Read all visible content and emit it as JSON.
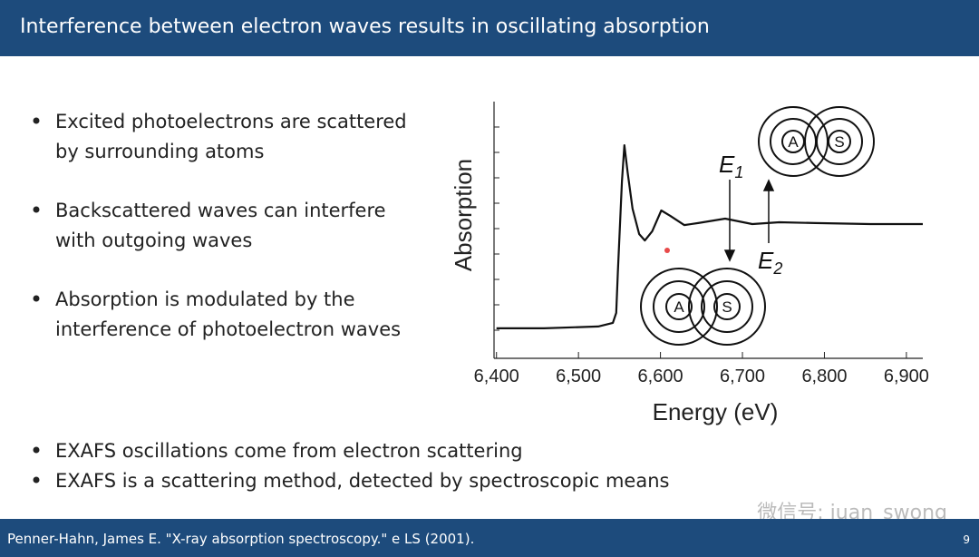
{
  "slide": {
    "title": "Interference between electron waves results in oscillating absorption",
    "bullets_top": [
      "Excited photoelectrons are scattered",
      "by surrounding atoms",
      "Backscattered waves can interfere",
      "with outgoing waves",
      "Absorption is modulated by the",
      "interference of photoelectron waves"
    ],
    "bullets_bottom": [
      "EXAFS oscillations come from electron scattering",
      "EXAFS is a scattering method, detected by spectroscopic means"
    ],
    "footer": "Penner-Hahn, James E. \"X-ray absorption spectroscopy.\" e LS (2001).",
    "page_number": "9",
    "watermark": "微信号: juan_swong"
  },
  "chart_data": {
    "type": "line",
    "xlabel": "Energy (eV)",
    "ylabel": "Absorption",
    "x": [
      6400,
      6458,
      6524,
      6542,
      6546,
      6548,
      6553,
      6556,
      6560,
      6566,
      6574,
      6581,
      6590,
      6601,
      6612,
      6629,
      6646,
      6679,
      6712,
      6745,
      6789,
      6856,
      6920
    ],
    "y": [
      0.117,
      0.117,
      0.124,
      0.138,
      0.177,
      0.336,
      0.689,
      0.83,
      0.724,
      0.583,
      0.484,
      0.459,
      0.495,
      0.576,
      0.555,
      0.519,
      0.527,
      0.544,
      0.523,
      0.53,
      0.527,
      0.523,
      0.523
    ],
    "color": "#111111",
    "xlim": [
      6397,
      6920
    ],
    "ylim": [
      0,
      1
    ],
    "xticks": [
      {
        "value": 6400,
        "label": "6,400"
      },
      {
        "value": 6500,
        "label": "6,500"
      },
      {
        "value": 6600,
        "label": "6,600"
      },
      {
        "value": 6700,
        "label": "6,700"
      },
      {
        "value": 6800,
        "label": "6,800"
      },
      {
        "value": 6900,
        "label": "6,900"
      }
    ],
    "annotations": [
      {
        "text": "E",
        "sub": "1"
      },
      {
        "text": "E",
        "sub": "2"
      }
    ],
    "atom_labels": [
      "A",
      "S",
      "A",
      "S"
    ]
  }
}
